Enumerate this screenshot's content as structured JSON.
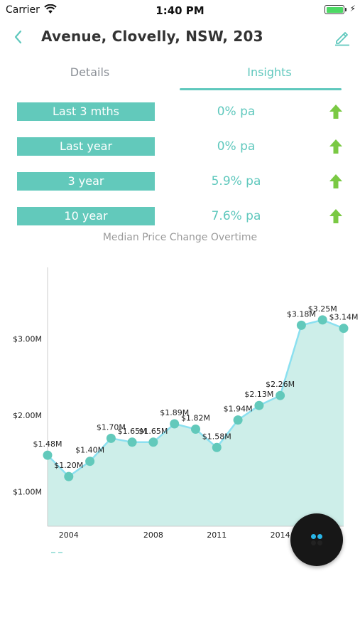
{
  "status_bar": {
    "carrier": "Carrier",
    "time": "1:40 PM",
    "battery_level": 1.0
  },
  "nav": {
    "title": "Avenue, Clovelly, NSW, 203",
    "back_icon": "chevron-left-icon",
    "edit_icon": "pencil-icon"
  },
  "tabs": [
    {
      "label": "Details",
      "active": false
    },
    {
      "label": "Insights",
      "active": true
    }
  ],
  "stats": [
    {
      "label": "Last 3 mths",
      "value": "0% pa",
      "trend": "up"
    },
    {
      "label": "Last year",
      "value": "0% pa",
      "trend": "up"
    },
    {
      "label": "3 year",
      "value": "5.9% pa",
      "trend": "up"
    },
    {
      "label": "10 year",
      "value": "7.6% pa",
      "trend": "up"
    }
  ],
  "chart_caption": "Median Price Change Overtime",
  "colors": {
    "accent": "#5fc8bd",
    "label_bg": "#62c9bb",
    "arrow": "#7ac943",
    "area_fill": "#cdeee9",
    "line": "#8be0f0",
    "point": "#62c9bb"
  },
  "chart_data": {
    "type": "area",
    "x": [
      2003,
      2004,
      2005,
      2006,
      2007,
      2008,
      2009,
      2010,
      2011,
      2012,
      2013,
      2014,
      2015,
      2016,
      2017
    ],
    "values": [
      1.48,
      1.2,
      1.4,
      1.7,
      1.65,
      1.65,
      1.89,
      1.82,
      1.58,
      1.94,
      2.13,
      2.26,
      3.18,
      3.25,
      3.14
    ],
    "data_labels": [
      "$1.48M",
      "$1.20M",
      "$1.40M",
      "$1.70M",
      "$1.65M",
      "$1.65M",
      "$1.89M",
      "$1.82M",
      "$1.58M",
      "$1.94M",
      "$2.13M",
      "$2.26M",
      "$3.18M",
      "$3.25M",
      "$3.14M"
    ],
    "y_ticks": [
      1.0,
      2.0,
      3.0
    ],
    "y_tick_labels": [
      "$1.00M",
      "$2.00M",
      "$3.00M"
    ],
    "x_ticks": [
      2004,
      2008,
      2011,
      2014
    ],
    "x_tick_labels": [
      "2004",
      "2008",
      "2011",
      "2014"
    ],
    "ylim": [
      0.55,
      3.9
    ],
    "xlim": [
      2003,
      2017
    ],
    "grid": false,
    "title": "",
    "xlabel": "",
    "ylabel": ""
  },
  "fab": {
    "icon": "dots-icon",
    "dot_colors": [
      "#29b6e8",
      "#29b6e8",
      "#222222",
      "#222222"
    ]
  }
}
